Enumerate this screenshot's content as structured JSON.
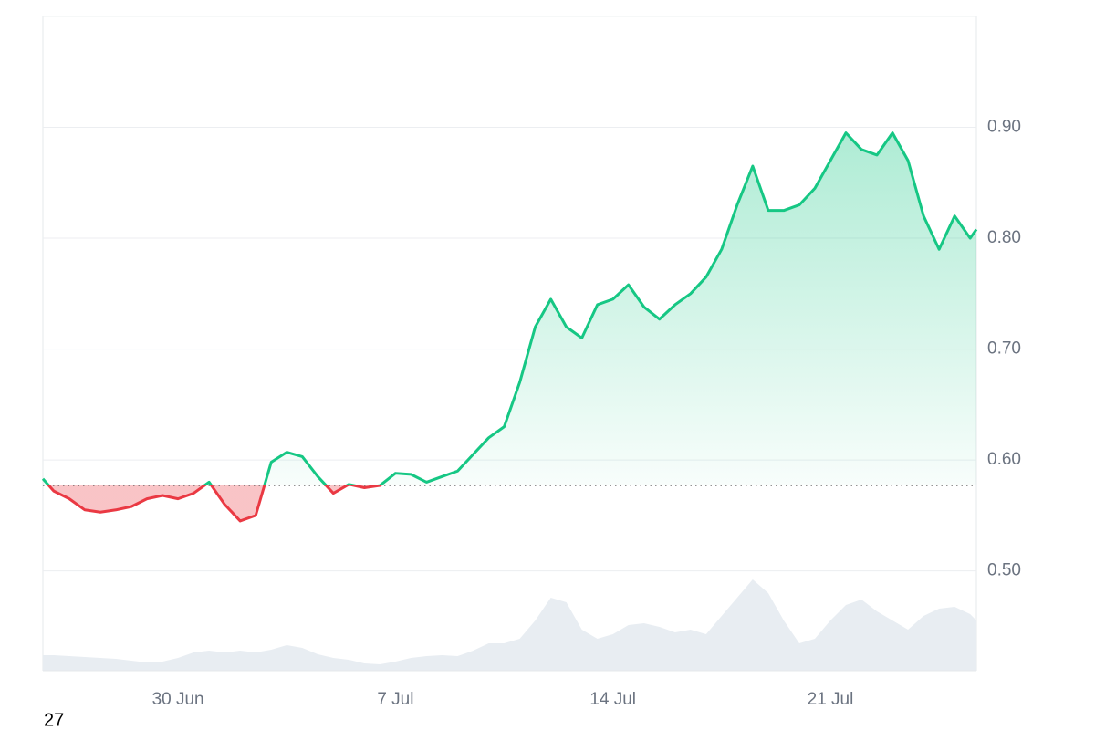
{
  "chart_data": {
    "type": "line",
    "x": [
      -4.35,
      -4,
      -3.5,
      -3,
      -2.5,
      -2,
      -1.5,
      -1,
      -0.5,
      0,
      0.5,
      1,
      1.5,
      2,
      2.5,
      3,
      3.5,
      4,
      4.5,
      5,
      5.5,
      6,
      6.5,
      7,
      7.5,
      8,
      8.5,
      9,
      9.5,
      10,
      10.5,
      11,
      11.5,
      12,
      12.5,
      13,
      13.5,
      14,
      14.5,
      15,
      15.5,
      16,
      16.5,
      17,
      17.5,
      18,
      18.5,
      19,
      19.5,
      20,
      20.5,
      21,
      21.5,
      22,
      22.5,
      23,
      23.5,
      24,
      24.5,
      25,
      25.5,
      25.7
    ],
    "series": [
      {
        "color": "#16c784",
        "down_color": "#ea3943",
        "values": [
          0.583,
          0.572,
          0.565,
          0.555,
          0.553,
          0.555,
          0.558,
          0.565,
          0.568,
          0.565,
          0.57,
          0.58,
          0.56,
          0.545,
          0.55,
          0.598,
          0.607,
          0.603,
          0.585,
          0.57,
          0.578,
          0.575,
          0.577,
          0.588,
          0.587,
          0.58,
          0.585,
          0.59,
          0.605,
          0.62,
          0.63,
          0.67,
          0.72,
          0.745,
          0.72,
          0.71,
          0.74,
          0.745,
          0.758,
          0.738,
          0.727,
          0.74,
          0.75,
          0.765,
          0.79,
          0.83,
          0.865,
          0.825,
          0.825,
          0.83,
          0.845,
          0.87,
          0.895,
          0.88,
          0.875,
          0.895,
          0.87,
          0.82,
          0.79,
          0.82,
          0.8,
          0.808
        ]
      },
      {
        "axis": "y2",
        "color": "#e8edf2",
        "values": [
          17,
          17,
          16,
          15,
          14,
          13,
          11,
          9,
          10,
          14,
          20,
          22,
          20,
          22,
          20,
          23,
          28,
          25,
          18,
          14,
          12,
          8,
          7,
          10,
          14,
          16,
          17,
          16,
          22,
          30,
          30,
          35,
          55,
          80,
          75,
          45,
          35,
          40,
          50,
          52,
          48,
          42,
          45,
          40,
          60,
          80,
          100,
          85,
          55,
          30,
          35,
          55,
          72,
          78,
          65,
          55,
          45,
          60,
          68,
          70,
          62,
          55
        ]
      }
    ],
    "baseline": 0.577,
    "xlim": [
      -4.35,
      25.7
    ],
    "xticks": [
      {
        "value": 0,
        "label": "30 Jun"
      },
      {
        "value": 7,
        "label": "7 Jul"
      },
      {
        "value": 14,
        "label": "14 Jul"
      },
      {
        "value": 21,
        "label": "21 Jul"
      }
    ],
    "ylim": [
      0.41,
      1.0
    ],
    "yticks": [
      {
        "value": 0.9,
        "label": "0.90"
      },
      {
        "value": 0.8,
        "label": "0.80"
      },
      {
        "value": 0.7,
        "label": "0.70"
      },
      {
        "value": 0.6,
        "label": "0.60"
      },
      {
        "value": 0.5,
        "label": "0.50"
      }
    ],
    "y2lim": [
      0,
      717
    ],
    "grid": true
  },
  "footer": "27"
}
